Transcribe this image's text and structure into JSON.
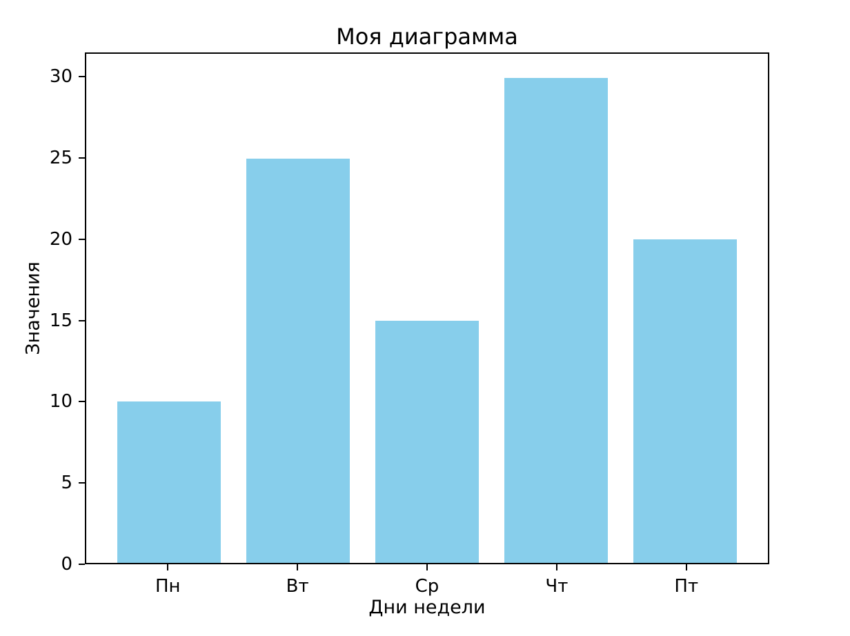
{
  "chart_data": {
    "type": "bar",
    "title": "Моя диаграмма",
    "xlabel": "Дни недели",
    "ylabel": "Значения",
    "categories": [
      "Пн",
      "Вт",
      "Ср",
      "Чт",
      "Пт"
    ],
    "values": [
      10,
      25,
      15,
      30,
      20
    ],
    "yticks": [
      0,
      5,
      10,
      15,
      20,
      25,
      30
    ],
    "ylim": [
      0,
      31.5
    ],
    "bar_color": "#87CEEB",
    "axis_color": "#000000",
    "background": "#FFFFFF",
    "grid": false,
    "legend": null,
    "bar_width_fraction": 0.8
  }
}
